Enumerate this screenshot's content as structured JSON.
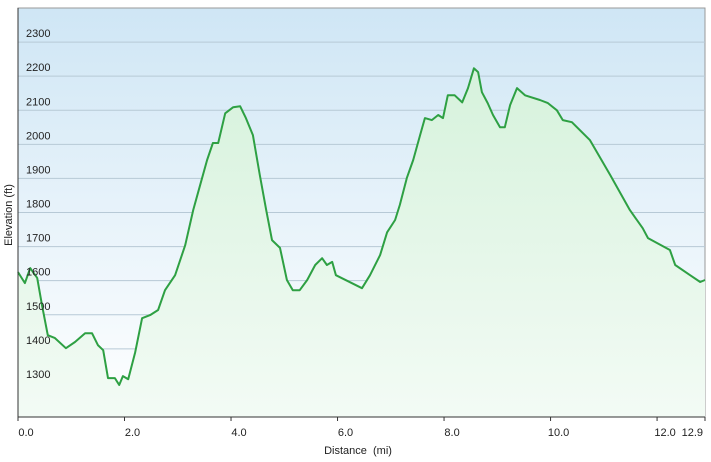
{
  "chart_data": {
    "type": "area",
    "xlabel": "Distance  (mi)",
    "ylabel": "Elevation (ft)",
    "x": [
      0,
      0.13,
      0.23,
      0.36,
      0.45,
      0.56,
      0.69,
      0.9,
      1.07,
      1.26,
      1.39,
      1.5,
      1.6,
      1.69,
      1.82,
      1.9,
      1.97,
      2.07,
      2.2,
      2.33,
      2.48,
      2.63,
      2.76,
      2.95,
      3.14,
      3.29,
      3.42,
      3.55,
      3.66,
      3.76,
      3.89,
      4.04,
      4.17,
      4.28,
      4.41,
      4.54,
      4.66,
      4.77,
      4.92,
      5.05,
      5.16,
      5.29,
      5.43,
      5.58,
      5.71,
      5.8,
      5.9,
      5.97,
      6.46,
      6.61,
      6.8,
      6.93,
      7.08,
      7.17,
      7.3,
      7.42,
      7.55,
      7.64,
      7.77,
      7.89,
      7.98,
      8.07,
      8.2,
      8.34,
      8.45,
      8.56,
      8.64,
      8.71,
      8.82,
      8.92,
      9.05,
      9.14,
      9.24,
      9.37,
      9.52,
      9.8,
      9.95,
      10.12,
      10.23,
      10.4,
      10.74,
      11.12,
      11.49,
      11.73,
      11.83,
      12.24,
      12.34,
      12.62,
      12.81,
      12.9
    ],
    "series": [
      {
        "color": "#2ea043",
        "values": [
          1625,
          1593,
          1637,
          1608,
          1528,
          1440,
          1432,
          1402,
          1420,
          1446,
          1446,
          1411,
          1396,
          1314,
          1314,
          1294,
          1320,
          1311,
          1390,
          1490,
          1499,
          1514,
          1572,
          1616,
          1704,
          1807,
          1880,
          1954,
          2004,
          2004,
          2091,
          2109,
          2112,
          2077,
          2027,
          1910,
          1807,
          1719,
          1696,
          1602,
          1572,
          1572,
          1602,
          1646,
          1666,
          1646,
          1655,
          1616,
          1578,
          1616,
          1675,
          1742,
          1778,
          1822,
          1901,
          1954,
          2027,
          2077,
          2071,
          2086,
          2077,
          2144,
          2144,
          2123,
          2165,
          2223,
          2212,
          2153,
          2121,
          2086,
          2050,
          2050,
          2115,
          2165,
          2144,
          2130,
          2121,
          2100,
          2071,
          2065,
          2012,
          1910,
          1807,
          1754,
          1725,
          1690,
          1646,
          1616,
          1596,
          1602
        ]
      }
    ],
    "xlim": [
      0,
      12.9
    ],
    "xticks": [
      {
        "value": 0,
        "label": "0.0"
      },
      {
        "value": 2,
        "label": "2.0"
      },
      {
        "value": 4,
        "label": "4.0"
      },
      {
        "value": 6,
        "label": "6.0"
      },
      {
        "value": 8,
        "label": "8.0"
      },
      {
        "value": 10,
        "label": "10.0"
      },
      {
        "value": 12,
        "label": "12.0"
      },
      12.9
    ],
    "ylim": [
      1200,
      2400
    ],
    "yticks": [
      1300,
      1400,
      1500,
      1600,
      1700,
      1800,
      1900,
      2000,
      2100,
      2200,
      2300
    ],
    "grid": true
  }
}
